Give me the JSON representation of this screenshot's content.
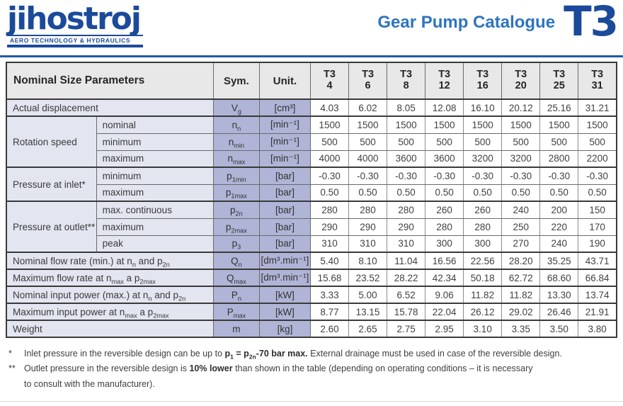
{
  "colors": {
    "brand_blue": "#1b4a9b",
    "title_blue": "#2e74c1",
    "rule_blue": "#2458a6",
    "table_header_gray": "#e8e8e8",
    "param_cell_lavender": "#e3e5f1",
    "symbol_cell_lavender": "#b0b4d6"
  },
  "header": {
    "logo_text": "jihostroj",
    "logo_tagline": "AERO TECHNOLOGY & HYDRAULICS",
    "catalogue_title": "Gear Pump Catalogue",
    "series": "T3"
  },
  "table": {
    "header": {
      "param_label": "Nominal Size Parameters",
      "sym_label": "Sym.",
      "unit_label": "Unit.",
      "models": [
        {
          "prefix": "T3",
          "size": "4"
        },
        {
          "prefix": "T3",
          "size": "6"
        },
        {
          "prefix": "T3",
          "size": "8"
        },
        {
          "prefix": "T3",
          "size": "12"
        },
        {
          "prefix": "T3",
          "size": "16"
        },
        {
          "prefix": "T3",
          "size": "20"
        },
        {
          "prefix": "T3",
          "size": "25"
        },
        {
          "prefix": "T3",
          "size": "31"
        }
      ]
    },
    "rows": [
      {
        "full": true,
        "group_end": true,
        "label_html": "Actual displacement",
        "sym_html": "V<sub>g</sub>",
        "unit": "[cm³]",
        "values": [
          "4.03",
          "6.02",
          "8.05",
          "12.08",
          "16.10",
          "20.12",
          "25.16",
          "31.21"
        ]
      },
      {
        "group": {
          "label": "Rotation speed",
          "rowspan": 3
        },
        "label_html": "nominal",
        "sym_html": "n<sub>n</sub>",
        "unit": "[min⁻¹]",
        "values": [
          "1500",
          "1500",
          "1500",
          "1500",
          "1500",
          "1500",
          "1500",
          "1500"
        ]
      },
      {
        "label_html": "minimum",
        "sym_html": "n<sub>min</sub>",
        "unit": "[min⁻¹]",
        "values": [
          "500",
          "500",
          "500",
          "500",
          "500",
          "500",
          "500",
          "500"
        ]
      },
      {
        "group_end": true,
        "label_html": "maximum",
        "sym_html": "n<sub>max</sub>",
        "unit": "[min⁻¹]",
        "values": [
          "4000",
          "4000",
          "3600",
          "3600",
          "3200",
          "3200",
          "2800",
          "2200"
        ]
      },
      {
        "group": {
          "label": "Pressure at inlet*",
          "rowspan": 2
        },
        "label_html": "minimum",
        "sym_html": "p<sub>1min</sub>",
        "unit": "[bar]",
        "values": [
          "-0.30",
          "-0.30",
          "-0.30",
          "-0.30",
          "-0.30",
          "-0.30",
          "-0.30",
          "-0.30"
        ]
      },
      {
        "group_end": true,
        "label_html": "maximum",
        "sym_html": "p<sub>1max</sub>",
        "unit": "[bar]",
        "values": [
          "0.50",
          "0.50",
          "0.50",
          "0.50",
          "0.50",
          "0.50",
          "0.50",
          "0.50"
        ]
      },
      {
        "group": {
          "label": "Pressure at outlet**",
          "rowspan": 3
        },
        "label_html": "max. continuous",
        "sym_html": "p<sub>2n</sub>",
        "unit": "[bar]",
        "values": [
          "280",
          "280",
          "280",
          "260",
          "260",
          "240",
          "200",
          "150"
        ]
      },
      {
        "label_html": "maximum",
        "sym_html": "p<sub>2max</sub>",
        "unit": "[bar]",
        "values": [
          "290",
          "290",
          "290",
          "280",
          "280",
          "250",
          "220",
          "170"
        ]
      },
      {
        "group_end": true,
        "label_html": "peak",
        "sym_html": "p<sub>3</sub>",
        "unit": "[bar]",
        "values": [
          "310",
          "310",
          "310",
          "300",
          "300",
          "270",
          "240",
          "190"
        ]
      },
      {
        "full": true,
        "group_end": true,
        "label_html": "Nominal flow rate (min.) at n<sub>n</sub> and p<sub>2n</sub>",
        "sym_html": "Q<sub>n</sub>",
        "unit": "[dm³.min⁻¹]",
        "values": [
          "5.40",
          "8.10",
          "11.04",
          "16.56",
          "22.56",
          "28.20",
          "35.25",
          "43.71"
        ]
      },
      {
        "full": true,
        "group_end": true,
        "label_html": "Maximum flow rate at n<sub>max</sub> a p<sub>2max</sub>",
        "sym_html": "Q<sub>max</sub>",
        "unit": "[dm³.min⁻¹]",
        "values": [
          "15.68",
          "23.52",
          "28.22",
          "42.34",
          "50.18",
          "62.72",
          "68.60",
          "66.84"
        ]
      },
      {
        "full": true,
        "group_end": true,
        "label_html": "Nominal input power (max.) at n<sub>n</sub> and p<sub>2n</sub>",
        "sym_html": "P<sub>n</sub>",
        "unit": "[kW]",
        "values": [
          "3.33",
          "5.00",
          "6.52",
          "9.06",
          "11.82",
          "11.82",
          "13.30",
          "13.74"
        ]
      },
      {
        "full": true,
        "group_end": true,
        "label_html": "Maximum input power at n<sub>max</sub> a p<sub>2max</sub>",
        "sym_html": "P<sub>max</sub>",
        "unit": "[kW]",
        "values": [
          "8.77",
          "13.15",
          "15.78",
          "22.04",
          "26.12",
          "29.02",
          "26.46",
          "21.91"
        ]
      },
      {
        "full": true,
        "group_end": true,
        "label_html": "Weight",
        "sym_html": "m",
        "unit": "[kg]",
        "values": [
          "2.60",
          "2.65",
          "2.75",
          "2.95",
          "3.10",
          "3.35",
          "3.50",
          "3.80"
        ]
      }
    ]
  },
  "footnotes": [
    {
      "marker": "*",
      "html": "Inlet pressure in the reversible design can be up to <b>p<sub>1</sub> = p<sub>2n</sub>-70 bar max.</b> External drainage must be used in case of the reversible design."
    },
    {
      "marker": "**",
      "html": "Outlet pressure in the reversible design is <b>10% lower</b> than shown in the table (depending on operating conditions – it is necessary<br>to consult with the manufacturer)."
    }
  ]
}
